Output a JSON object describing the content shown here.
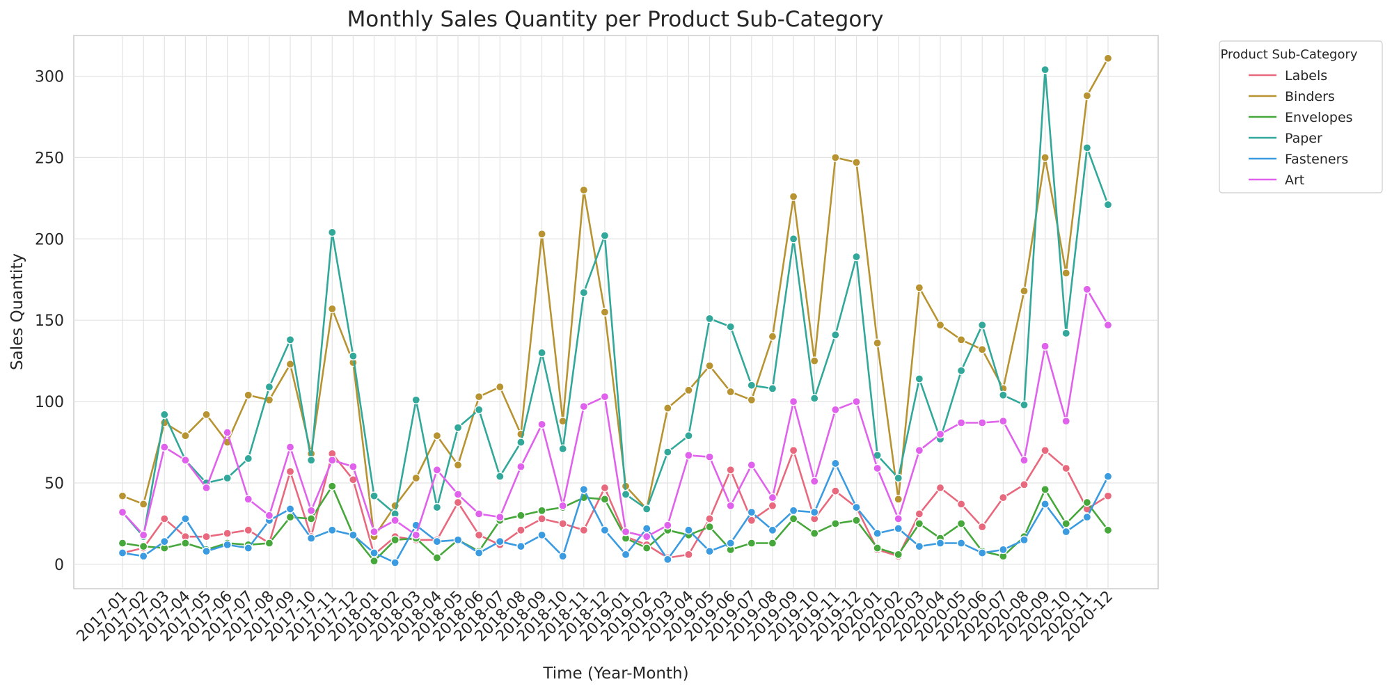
{
  "chart_data": {
    "type": "line",
    "title": "Monthly Sales Quantity per Product Sub-Category",
    "xlabel": "Time (Year-Month)",
    "ylabel": "Sales Quantity",
    "ylim": [
      -15,
      325
    ],
    "yticks": [
      0,
      50,
      100,
      150,
      200,
      250,
      300
    ],
    "grid": true,
    "legend": {
      "title": "Product Sub-Category",
      "placement": "outside-top-right"
    },
    "x": [
      "2017-01",
      "2017-02",
      "2017-03",
      "2017-04",
      "2017-05",
      "2017-06",
      "2017-07",
      "2017-08",
      "2017-09",
      "2017-10",
      "2017-11",
      "2017-12",
      "2018-01",
      "2018-02",
      "2018-03",
      "2018-04",
      "2018-05",
      "2018-06",
      "2018-07",
      "2018-08",
      "2018-09",
      "2018-10",
      "2018-11",
      "2018-12",
      "2019-01",
      "2019-02",
      "2019-03",
      "2019-04",
      "2019-05",
      "2019-06",
      "2019-07",
      "2019-08",
      "2019-09",
      "2019-10",
      "2019-11",
      "2019-12",
      "2020-01",
      "2020-02",
      "2020-03",
      "2020-04",
      "2020-05",
      "2020-06",
      "2020-07",
      "2020-08",
      "2020-09",
      "2020-10",
      "2020-11",
      "2020-12"
    ],
    "series": [
      {
        "name": "Labels",
        "color": "#e8697d",
        "values": [
          7,
          10,
          28,
          17,
          17,
          19,
          21,
          13,
          57,
          17,
          68,
          52,
          6,
          17,
          15,
          15,
          38,
          18,
          12,
          21,
          28,
          25,
          21,
          47,
          17,
          12,
          4,
          6,
          28,
          58,
          27,
          36,
          70,
          28,
          45,
          35,
          9,
          5,
          31,
          47,
          37,
          23,
          41,
          49,
          70,
          59,
          34,
          42
        ]
      },
      {
        "name": "Binders",
        "color": "#b89331",
        "values": [
          42,
          37,
          87,
          79,
          92,
          75,
          104,
          101,
          123,
          68,
          157,
          124,
          17,
          36,
          53,
          79,
          61,
          103,
          109,
          80,
          203,
          88,
          230,
          155,
          48,
          34,
          96,
          107,
          122,
          106,
          101,
          140,
          226,
          125,
          250,
          247,
          136,
          40,
          170,
          147,
          138,
          132,
          108,
          168,
          250,
          179,
          288,
          311
        ]
      },
      {
        "name": "Envelopes",
        "color": "#46a73b",
        "values": [
          13,
          11,
          10,
          13,
          9,
          13,
          12,
          13,
          29,
          28,
          48,
          18,
          2,
          15,
          16,
          4,
          15,
          8,
          27,
          30,
          33,
          35,
          41,
          40,
          16,
          10,
          21,
          18,
          23,
          9,
          13,
          13,
          28,
          19,
          25,
          27,
          10,
          6,
          25,
          16,
          25,
          8,
          5,
          17,
          46,
          25,
          38,
          21
        ]
      },
      {
        "name": "Paper",
        "color": "#31a89a",
        "values": [
          32,
          17,
          92,
          64,
          50,
          53,
          65,
          109,
          138,
          64,
          204,
          128,
          42,
          31,
          101,
          35,
          84,
          95,
          54,
          75,
          130,
          71,
          167,
          202,
          43,
          34,
          69,
          79,
          151,
          146,
          110,
          108,
          200,
          102,
          141,
          189,
          67,
          53,
          114,
          77,
          119,
          147,
          104,
          98,
          304,
          142,
          256,
          221
        ]
      },
      {
        "name": "Fasteners",
        "color": "#3a9be0",
        "values": [
          7,
          5,
          14,
          28,
          8,
          12,
          10,
          27,
          34,
          16,
          21,
          18,
          7,
          1,
          24,
          14,
          15,
          7,
          14,
          11,
          18,
          5,
          46,
          21,
          6,
          22,
          3,
          21,
          8,
          13,
          32,
          21,
          33,
          32,
          62,
          35,
          19,
          22,
          11,
          13,
          13,
          7,
          9,
          15,
          37,
          20,
          29,
          54
        ]
      },
      {
        "name": "Art",
        "color": "#e062ec",
        "values": [
          32,
          18,
          72,
          64,
          47,
          81,
          40,
          30,
          72,
          33,
          64,
          60,
          20,
          27,
          18,
          58,
          43,
          31,
          29,
          60,
          86,
          36,
          97,
          103,
          20,
          17,
          24,
          67,
          66,
          36,
          61,
          41,
          100,
          51,
          95,
          100,
          59,
          28,
          70,
          80,
          87,
          87,
          88,
          64,
          134,
          88,
          169,
          147
        ]
      }
    ]
  }
}
